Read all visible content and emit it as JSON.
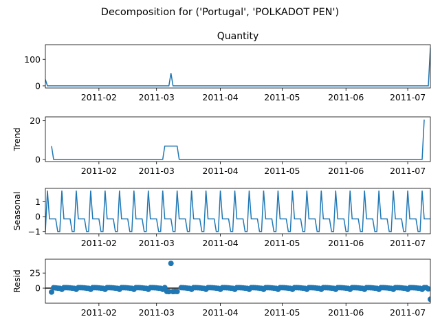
{
  "figure_title": "Decomposition for ('Portugal', 'POLKADOT PEN')",
  "line_color": "#1f77b4",
  "chart_data": [
    {
      "type": "line",
      "title": "Quantity",
      "ylabel": "",
      "x_start": "2011-01-06",
      "x_end": "2011-07-12",
      "xlim": [
        "2011-01-06",
        "2011-07-12"
      ],
      "ylim": [
        -8,
        155
      ],
      "ytick_labels": [
        "0",
        "100"
      ],
      "ytick_values": [
        0,
        100
      ],
      "xtick_labels": [
        "2011-02",
        "2011-03",
        "2011-04",
        "2011-05",
        "2011-06",
        "2011-07"
      ],
      "xtick_values": [
        "2011-02-01",
        "2011-03-01",
        "2011-04-01",
        "2011-05-01",
        "2011-06-01",
        "2011-07-01"
      ],
      "points": [
        [
          "2011-01-06",
          24
        ],
        [
          "2011-01-07",
          0
        ],
        [
          "2011-03-07",
          0
        ],
        [
          "2011-03-08",
          48
        ],
        [
          "2011-03-09",
          0
        ],
        [
          "2011-07-11",
          0
        ],
        [
          "2011-07-12",
          144
        ]
      ]
    },
    {
      "type": "line",
      "title": "",
      "ylabel": "Trend",
      "x_start": "2011-01-06",
      "x_end": "2011-07-12",
      "xlim": [
        "2011-01-06",
        "2011-07-12"
      ],
      "ylim": [
        -1.1,
        22
      ],
      "ytick_labels": [
        "0",
        "20"
      ],
      "ytick_values": [
        0,
        20
      ],
      "xtick_labels": [
        "2011-02",
        "2011-03",
        "2011-04",
        "2011-05",
        "2011-06",
        "2011-07"
      ],
      "xtick_values": [
        "2011-02-01",
        "2011-03-01",
        "2011-04-01",
        "2011-05-01",
        "2011-06-01",
        "2011-07-01"
      ],
      "points": [
        [
          "2011-01-09",
          6.9
        ],
        [
          "2011-01-10",
          0
        ],
        [
          "2011-03-04",
          0
        ],
        [
          "2011-03-05",
          6.9
        ],
        [
          "2011-03-11",
          6.9
        ],
        [
          "2011-03-12",
          0
        ],
        [
          "2011-07-08",
          0
        ],
        [
          "2011-07-09",
          20.6
        ]
      ]
    },
    {
      "type": "line",
      "title": "",
      "ylabel": "Seasonal",
      "x_start": "2011-01-06",
      "x_end": "2011-07-12",
      "xlim": [
        "2011-01-06",
        "2011-07-12"
      ],
      "ylim": [
        -1.15,
        1.9
      ],
      "ytick_labels": [
        "−1",
        "0",
        "1"
      ],
      "ytick_values": [
        -1,
        0,
        1
      ],
      "xtick_labels": [
        "2011-02",
        "2011-03",
        "2011-04",
        "2011-05",
        "2011-06",
        "2011-07"
      ],
      "xtick_values": [
        "2011-02-01",
        "2011-03-01",
        "2011-04-01",
        "2011-05-01",
        "2011-06-01",
        "2011-07-01"
      ],
      "period_days": 7,
      "pattern": [
        -1.0,
        1.75,
        -0.15,
        -0.15,
        -0.15,
        -0.15,
        -1.0
      ],
      "pattern_anchor": "2011-01-06"
    },
    {
      "type": "scatter",
      "title": "",
      "ylabel": "Resid",
      "x_start": "2011-01-06",
      "x_end": "2011-07-12",
      "xlim": [
        "2011-01-06",
        "2011-07-12"
      ],
      "ylim": [
        -25,
        48
      ],
      "ytick_labels": [
        "0",
        "25"
      ],
      "ytick_values": [
        0,
        25
      ],
      "xtick_labels": [
        "2011-02",
        "2011-03",
        "2011-04",
        "2011-05",
        "2011-06",
        "2011-07"
      ],
      "xtick_values": [
        "2011-02-01",
        "2011-03-01",
        "2011-04-01",
        "2011-05-01",
        "2011-06-01",
        "2011-07-01"
      ],
      "baseline": 0,
      "period_days": 7,
      "resid_pattern": [
        -0.3,
        -2.0,
        0.8,
        0.8,
        0.6,
        0.4,
        -0.1
      ],
      "specials": [
        [
          "2011-01-09",
          -6.5
        ],
        [
          "2011-03-06",
          -5.5
        ],
        [
          "2011-03-07",
          -5.8
        ],
        [
          "2011-03-08",
          41.0
        ],
        [
          "2011-03-09",
          -5.8
        ],
        [
          "2011-03-10",
          -5.5
        ],
        [
          "2011-03-11",
          -5.6
        ],
        [
          "2011-07-11",
          -1.2
        ],
        [
          "2011-07-12",
          -18.5
        ]
      ],
      "skip_ranges": [
        [
          "2011-01-06",
          "2011-01-08"
        ],
        [
          "2011-03-12",
          "2011-03-12"
        ]
      ]
    }
  ]
}
